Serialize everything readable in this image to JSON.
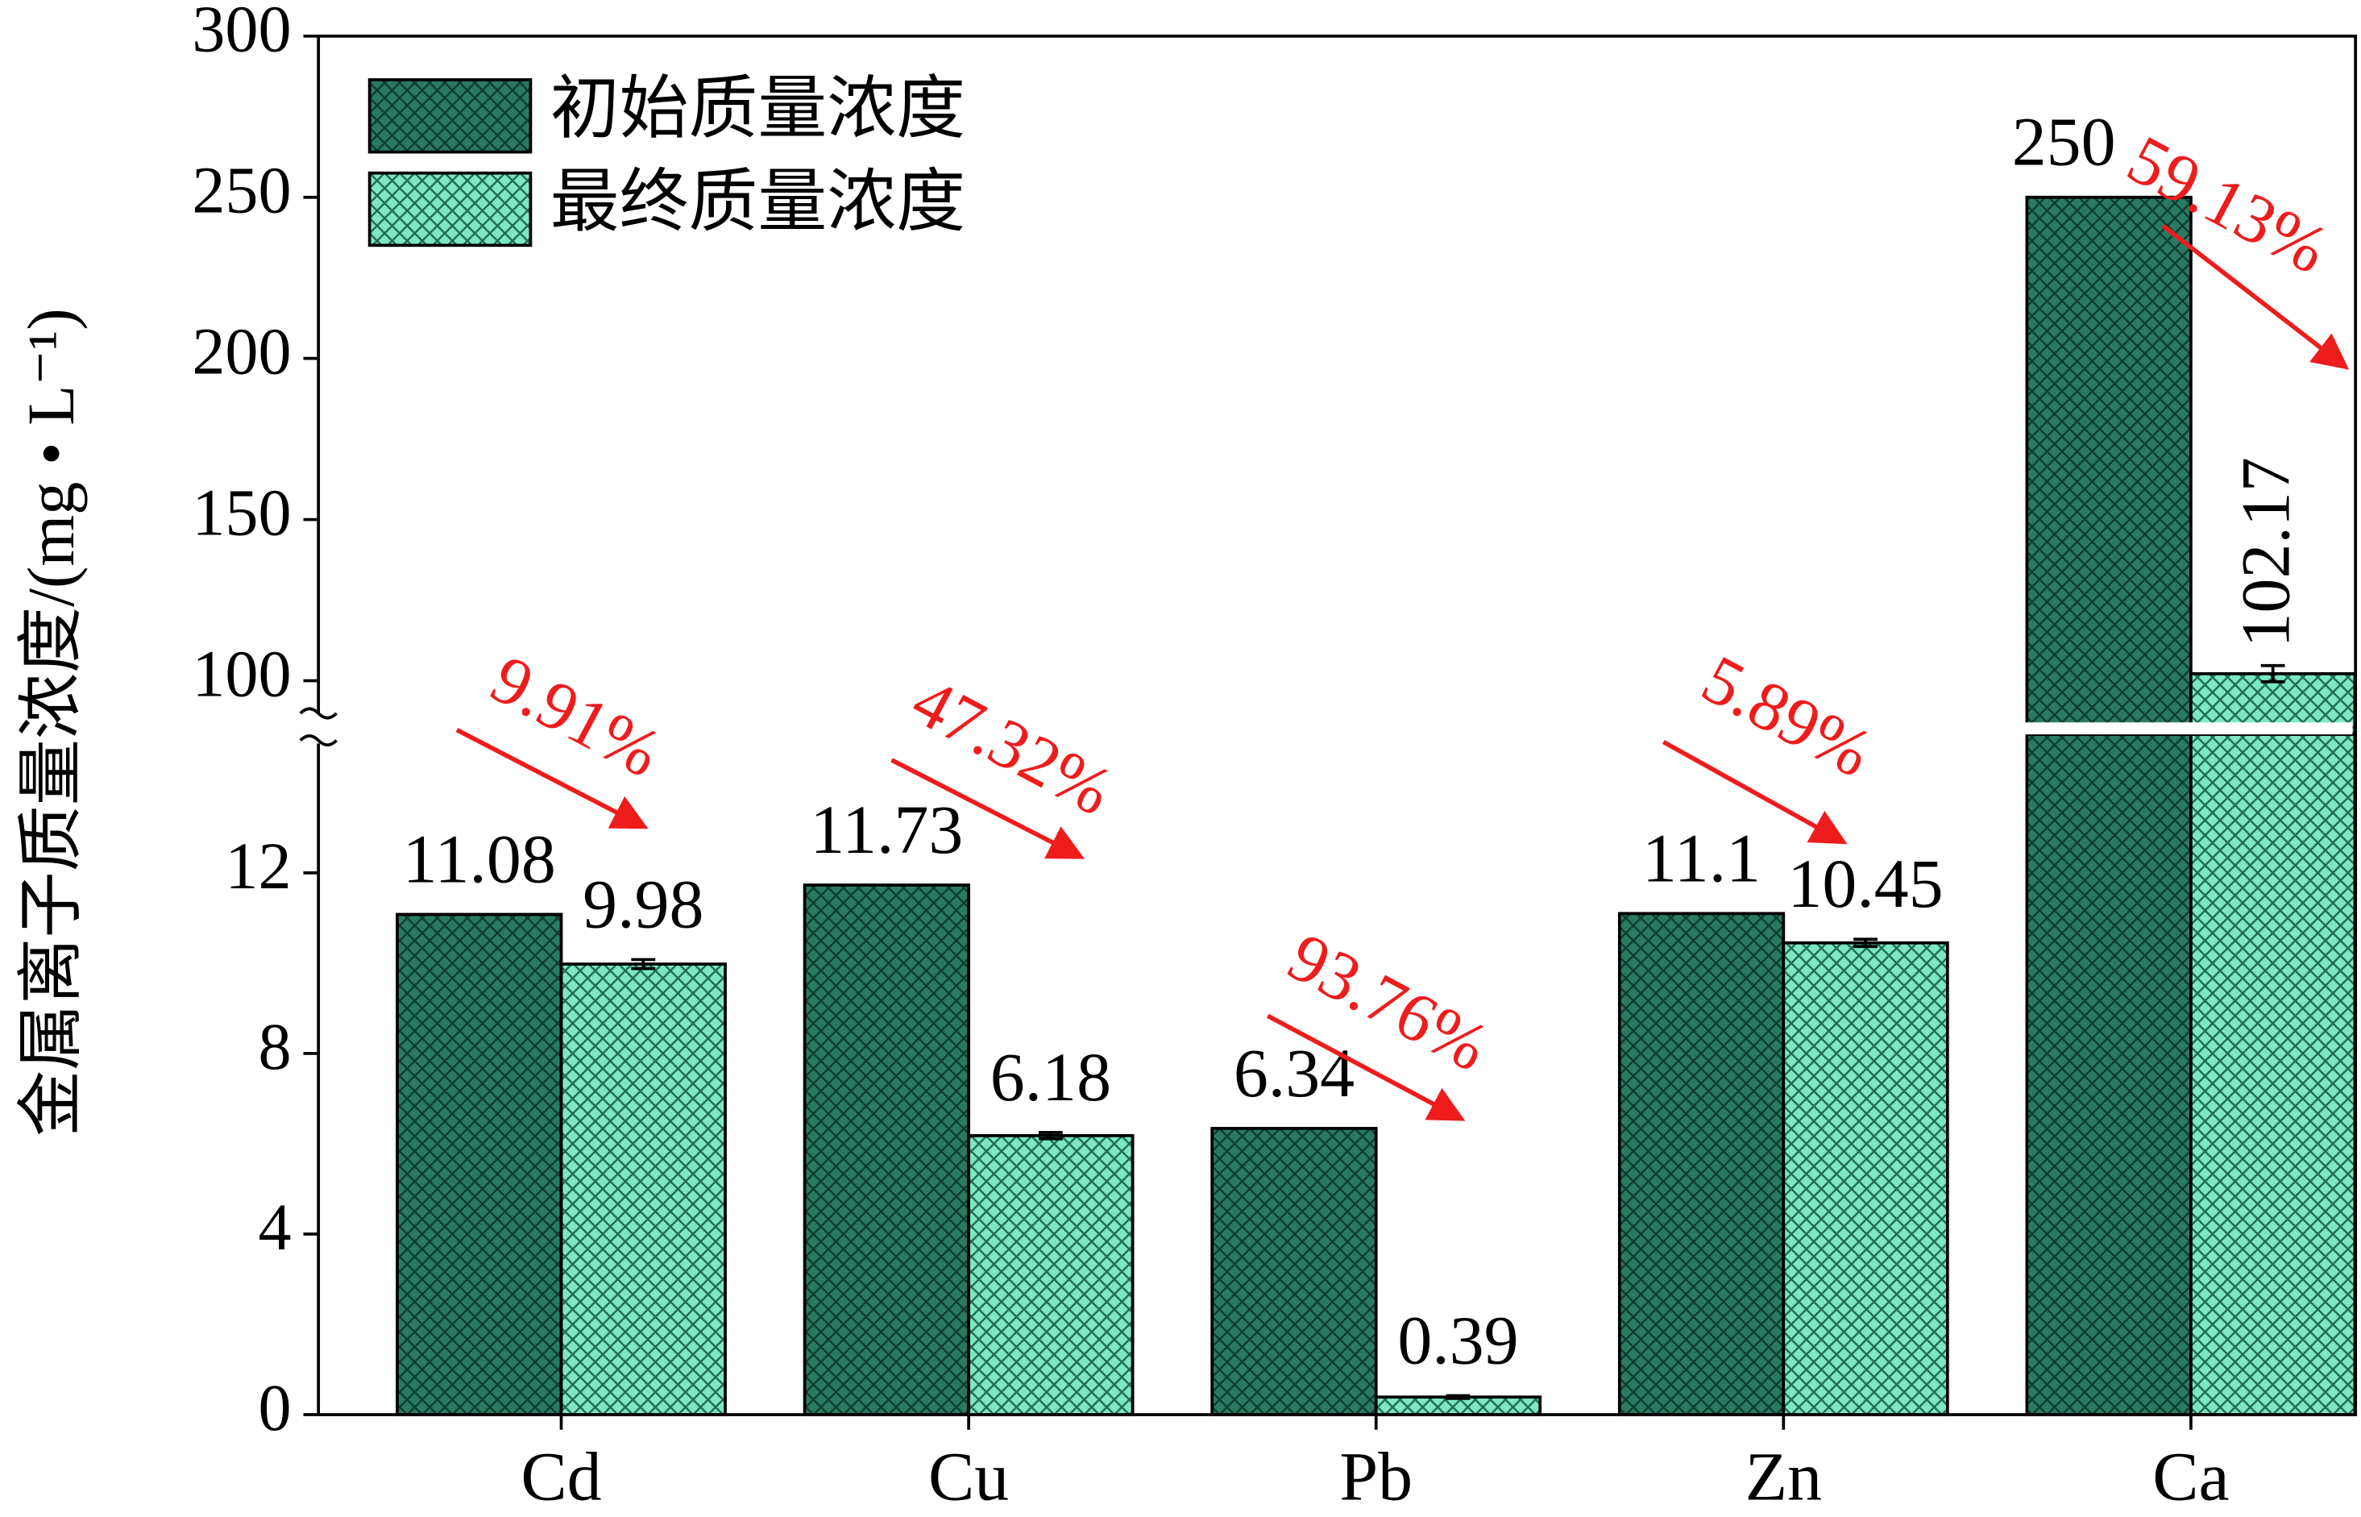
{
  "chart_data": {
    "type": "bar",
    "y_label": "金属离子质量浓度/(mg • L⁻¹)",
    "categories": [
      "Cd",
      "Cu",
      "Pb",
      "Zn",
      "Ca"
    ],
    "series": [
      {
        "name": "初始质量浓度",
        "color": "#2a7a62",
        "values": [
          11.08,
          11.73,
          6.34,
          11.1,
          250
        ]
      },
      {
        "name": "最终质量浓度",
        "color": "#7de8c0",
        "values": [
          9.98,
          6.18,
          0.39,
          10.45,
          102.17
        ],
        "errors": [
          0.1,
          0.07,
          0.03,
          0.08,
          2.5
        ]
      }
    ],
    "reduction_labels": [
      "9.91%",
      "47.32%",
      "93.76%",
      "5.89%",
      "59.13%"
    ],
    "axis_break": true,
    "ylim_lower": [
      0,
      15
    ],
    "ylim_upper": [
      88,
      300
    ],
    "yticks": [
      0,
      4,
      8,
      12,
      100,
      150,
      200,
      250,
      300
    ],
    "legend": "upper left"
  }
}
